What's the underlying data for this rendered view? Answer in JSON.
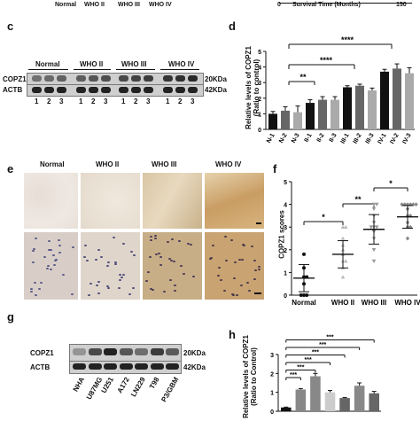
{
  "panel_top_left": {
    "group_labels": [
      "Normal",
      "WHO II",
      "WHO III",
      "WHO IV"
    ]
  },
  "panel_top_right": {
    "axis_label": "Survival Time (Months)",
    "tick_start": "0",
    "tick_end": "150"
  },
  "panel_c": {
    "letter": "c",
    "group_labels": [
      "Normal",
      "WHO II",
      "WHO III",
      "WHO IV"
    ],
    "row_labels": [
      "COPZ1",
      "ACTB"
    ],
    "sizes": [
      "20KDa",
      "42KDa"
    ],
    "lanes": [
      "1",
      "2",
      "3",
      "1",
      "2",
      "3",
      "1",
      "2",
      "3",
      "1",
      "2",
      "3"
    ]
  },
  "panel_d": {
    "letter": "d",
    "ylabel": "Relative levels of COPZ1",
    "ylabel2": "(Ratio to control)",
    "sig_labels": [
      "**",
      "****",
      "****"
    ]
  },
  "panel_e": {
    "letter": "e",
    "group_labels": [
      "Normal",
      "WHO II",
      "WHO III",
      "WHO IV"
    ]
  },
  "panel_f": {
    "letter": "f",
    "ylabel": "COPZ1 scores",
    "sig_labels": [
      "*",
      "**",
      "*"
    ]
  },
  "panel_g": {
    "letter": "g",
    "row_labels": [
      "COPZ1",
      "ACTB"
    ],
    "sizes": [
      "20KDa",
      "42KDa"
    ],
    "lanes": [
      "NHA",
      "U87MG",
      "U251",
      "A172",
      "LN229",
      "T98",
      "P3/GBM"
    ]
  },
  "panel_h": {
    "letter": "h",
    "ylabel": "Relative levels of COPZ1",
    "ylabel2": "(Ratio to Control)",
    "sig_labels": [
      "***",
      "***",
      "***",
      "***",
      "***",
      "***"
    ]
  },
  "chart_data": [
    {
      "type": "bar",
      "panel": "d",
      "categories": [
        "N-1",
        "N-2",
        "N-3",
        "II-1",
        "II-2",
        "II-3",
        "III-1",
        "III-2",
        "III-3",
        "IV-1",
        "IV-2",
        "IV-3"
      ],
      "values": [
        1.0,
        1.2,
        1.1,
        1.7,
        1.9,
        1.9,
        2.7,
        2.8,
        2.5,
        3.7,
        3.9,
        3.6
      ],
      "errors": [
        0.15,
        0.25,
        0.4,
        0.2,
        0.2,
        0.2,
        0.1,
        0.1,
        0.15,
        0.15,
        0.3,
        0.35
      ],
      "colors": [
        "#111111",
        "#666666",
        "#aaaaaa",
        "#111111",
        "#666666",
        "#aaaaaa",
        "#111111",
        "#666666",
        "#aaaaaa",
        "#111111",
        "#666666",
        "#aaaaaa"
      ],
      "ylim": [
        0,
        5
      ],
      "yticks": [
        "0",
        "1",
        "2",
        "3",
        "4",
        "5"
      ]
    },
    {
      "type": "scatter",
      "panel": "f",
      "categories": [
        "Normal",
        "WHO II",
        "WHO III",
        "WHO IV"
      ],
      "points": [
        [
          0,
          0,
          0,
          0.5,
          0.8,
          0.8,
          1.2,
          1.8
        ],
        [
          0.8,
          1.2,
          1.5,
          1.5,
          1.8,
          2.0,
          2.2,
          2.5,
          3.0,
          3.0
        ],
        [
          1.5,
          2.0,
          2.5,
          2.8,
          3.0,
          3.0,
          3.0,
          3.2,
          3.5,
          3.8,
          4.0,
          4.0
        ],
        [
          2.5,
          3.0,
          3.0,
          3.2,
          3.5,
          3.5,
          3.8,
          4.0,
          4.0,
          4.0,
          4.0,
          4.0,
          4.0
        ]
      ],
      "means": [
        0.75,
        1.8,
        2.9,
        3.45
      ],
      "sds": [
        0.6,
        0.6,
        0.65,
        0.5
      ],
      "markers": [
        "circle",
        "triangle",
        "triangle-down",
        "diamond"
      ],
      "ylim": [
        0,
        5
      ],
      "yticks": [
        "0",
        "1",
        "2",
        "3",
        "4",
        "5"
      ]
    },
    {
      "type": "bar",
      "panel": "h",
      "categories": [
        "NHA",
        "U87MG",
        "U251",
        "A172",
        "LN229",
        "T98",
        "P3/GBM"
      ],
      "values": [
        0.2,
        1.15,
        1.85,
        1.0,
        0.7,
        1.35,
        0.95
      ],
      "errors": [
        0.02,
        0.05,
        0.15,
        0.1,
        0.03,
        0.15,
        0.1
      ],
      "colors": [
        "#111111",
        "#888888",
        "#888888",
        "#cccccc",
        "#666666",
        "#888888",
        "#666666"
      ],
      "ylim": [
        0,
        3
      ],
      "yticks": [
        "0",
        "1",
        "2",
        "3"
      ]
    }
  ]
}
